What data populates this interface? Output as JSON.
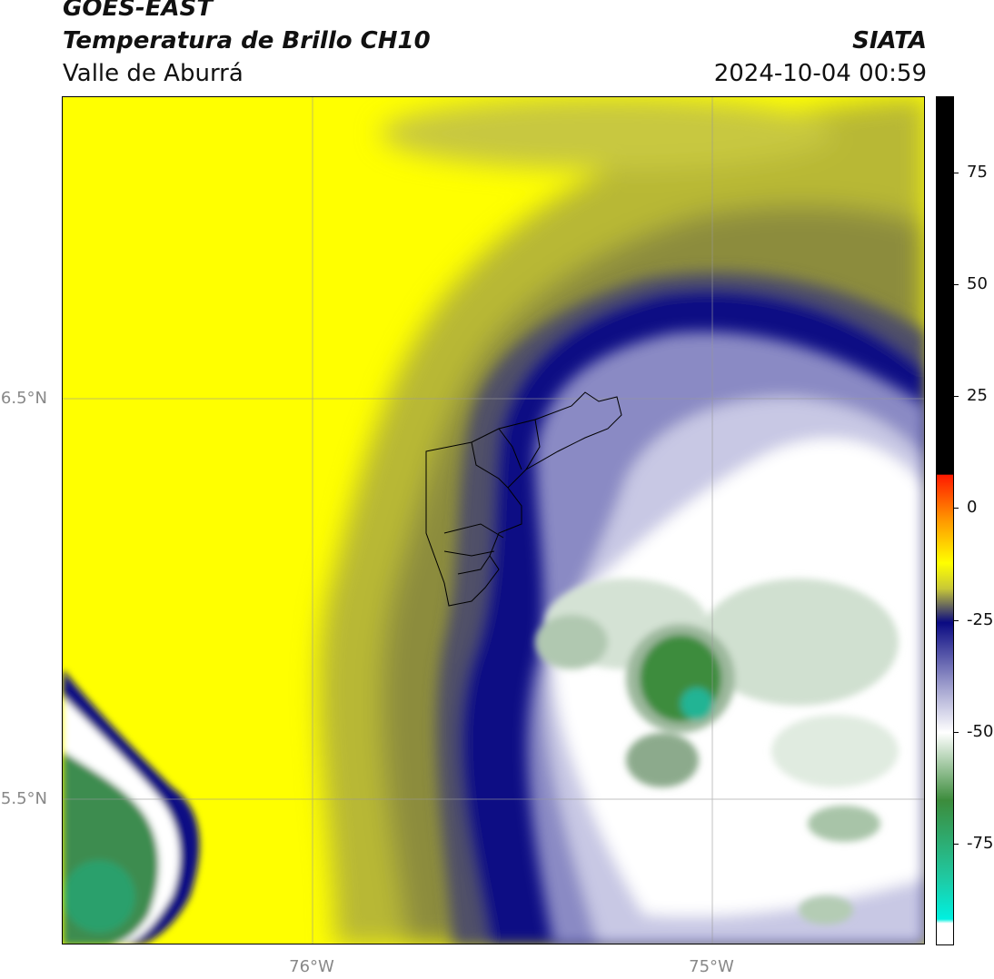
{
  "header": {
    "title_line1": "GOES-EAST",
    "title_line2": "Temperatura de Brillo CH10",
    "subtitle": "Valle de Aburrá",
    "organization": "SIATA",
    "timestamp": "2024-10-04 00:59"
  },
  "map": {
    "lat_labels": [
      "6.5°N",
      "5.5°N"
    ],
    "lon_labels": [
      "76°W",
      "75°W"
    ],
    "grid": true,
    "overlay": "Valle de Aburrá municipal boundaries"
  },
  "colorbar": {
    "tick_labels": [
      "75",
      "50",
      "25",
      "0",
      "-25",
      "-50",
      "-75"
    ],
    "colors": {
      "black": "#000000",
      "red": "#ff1a00",
      "orange": "#ff9900",
      "yellow": "#ffff00",
      "olive": "#c8c837",
      "navy": "#0a0a82",
      "lavender": "#a8a8d2",
      "white": "#ffffff",
      "green": "#3c8c3c",
      "teal": "#20c8a0",
      "cyan": "#00f0e0"
    }
  }
}
